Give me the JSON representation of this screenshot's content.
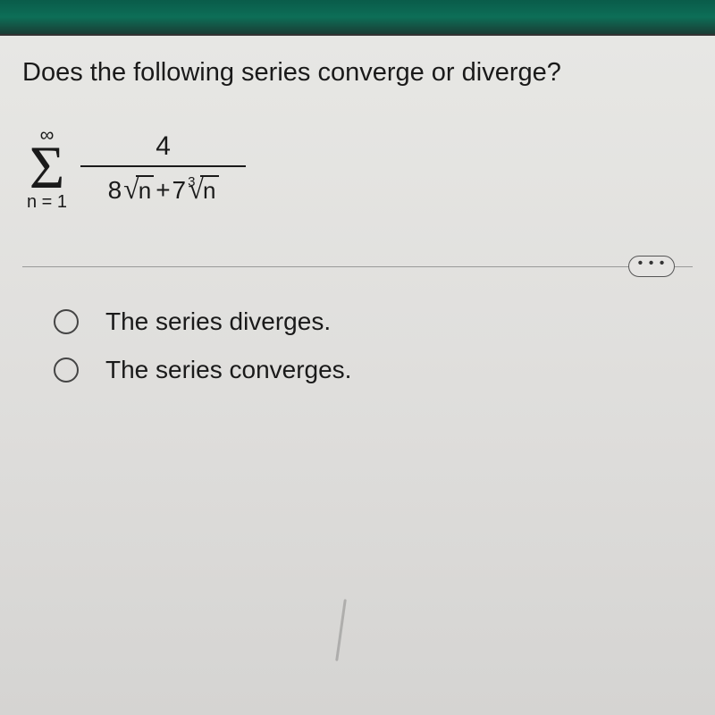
{
  "header": {
    "background_gradient": [
      "#0a5c4a",
      "#0d6e57",
      "#1a3d35"
    ]
  },
  "question": {
    "prompt": "Does the following series converge or diverge?"
  },
  "formula": {
    "sigma_upper": "∞",
    "sigma_lower": "n = 1",
    "numerator": "4",
    "denom_coef1": "8",
    "denom_radicand1": "n",
    "denom_plus": " + ",
    "denom_coef2": "7",
    "denom_root_index": "3",
    "denom_radicand2": "n"
  },
  "controls": {
    "ellipsis": "• • •"
  },
  "options": [
    {
      "label": "The series diverges."
    },
    {
      "label": "The series converges."
    }
  ],
  "styling": {
    "body_bg": [
      "#e8e8e5",
      "#dedddb",
      "#d5d4d2"
    ],
    "text_color": "#1a1a1a",
    "question_fontsize": 29,
    "option_fontsize": 28,
    "sigma_fontsize": 68,
    "radio_border_color": "#444",
    "divider_color": "#999",
    "ellipsis_border": "#555"
  }
}
